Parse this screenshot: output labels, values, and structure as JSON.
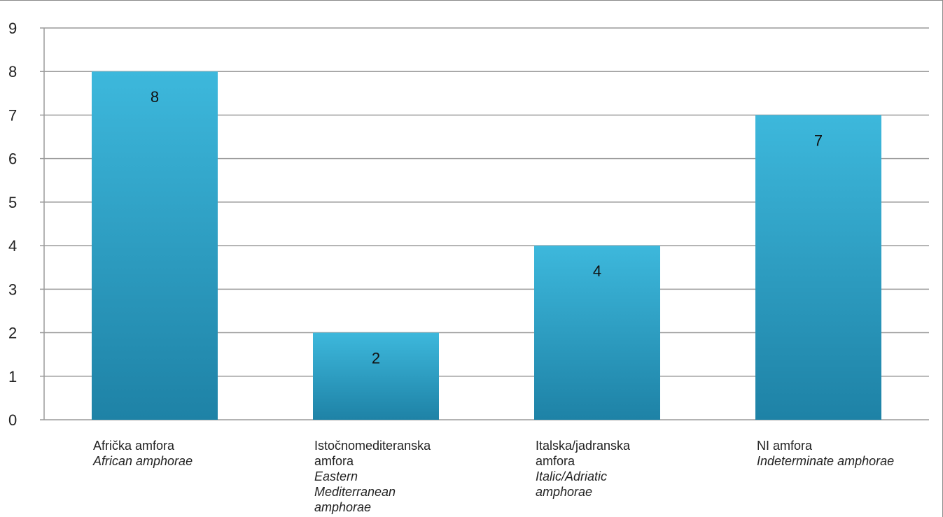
{
  "chart_data": {
    "type": "bar",
    "categories": [
      {
        "name": "Afrička amfora",
        "translation": "African amphorae"
      },
      {
        "name": "Istočnomediteranska amfora",
        "translation": "Eastern Mediterranean amphorae"
      },
      {
        "name": "Italska/jadranska amfora",
        "translation": "Italic/Adriatic amphorae"
      },
      {
        "name": "NI amfora",
        "translation": "Indeterminate amphorae"
      }
    ],
    "values": [
      8,
      2,
      4,
      7
    ],
    "data_labels": [
      "8",
      "2",
      "4",
      "7"
    ],
    "yticks": [
      "0",
      "1",
      "2",
      "3",
      "4",
      "5",
      "6",
      "7",
      "8",
      "9"
    ],
    "ylim": [
      0,
      9
    ],
    "grid": true,
    "legend": "none",
    "bar_color_top": "#3db8dc",
    "bar_color_bottom": "#1e82a6",
    "grid_color": "#9a9a9a"
  }
}
